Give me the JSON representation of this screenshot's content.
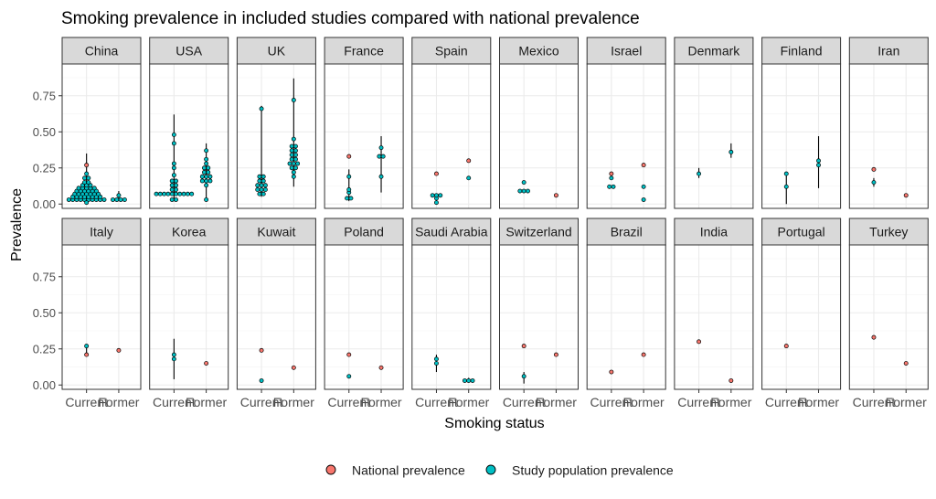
{
  "chart_data": {
    "type": "scatter",
    "title": "Smoking prevalence in included studies compared with national prevalence",
    "xlabel": "Smoking status",
    "ylabel": "Prevalence",
    "categories": [
      "Current",
      "Former"
    ],
    "ylim": [
      -0.03,
      0.97
    ],
    "yticks": [
      0.0,
      0.25,
      0.5,
      0.75
    ],
    "ytick_labels": [
      "0.00",
      "0.25",
      "0.50",
      "0.75"
    ],
    "grid": true,
    "legend_position": "bottom",
    "series_colors": {
      "national": "#F8766D",
      "study": "#00BFC4"
    },
    "legend": [
      {
        "key": "national",
        "label": "National prevalence"
      },
      {
        "key": "study",
        "label": "Study population prevalence"
      }
    ],
    "panels": [
      {
        "name": "China",
        "ranges": {
          "Current": [
            0.01,
            0.35
          ],
          "Former": [
            0.02,
            0.09
          ]
        },
        "national": {
          "Current": [
            0.27
          ],
          "Former": []
        },
        "study": {
          "Current": [
            0.03,
            0.03,
            0.03,
            0.03,
            0.03,
            0.03,
            0.03,
            0.03,
            0.03,
            0.03,
            0.05,
            0.05,
            0.05,
            0.05,
            0.05,
            0.05,
            0.05,
            0.05,
            0.07,
            0.07,
            0.07,
            0.07,
            0.07,
            0.07,
            0.07,
            0.09,
            0.09,
            0.09,
            0.09,
            0.09,
            0.09,
            0.11,
            0.11,
            0.11,
            0.11,
            0.11,
            0.13,
            0.13,
            0.13,
            0.15,
            0.15,
            0.18,
            0.18,
            0.21,
            0.01
          ],
          "Former": [
            0.03,
            0.03,
            0.03,
            0.03,
            0.06
          ]
        }
      },
      {
        "name": "USA",
        "ranges": {
          "Current": [
            0.02,
            0.62
          ],
          "Former": [
            0.02,
            0.42
          ]
        },
        "national": {
          "Current": [],
          "Former": []
        },
        "study": {
          "Current": [
            0.07,
            0.07,
            0.07,
            0.07,
            0.07,
            0.07,
            0.07,
            0.07,
            0.07,
            0.07,
            0.1,
            0.1,
            0.13,
            0.13,
            0.16,
            0.16,
            0.2,
            0.25,
            0.28,
            0.42,
            0.48,
            0.03,
            0.03
          ],
          "Former": [
            0.03,
            0.13,
            0.16,
            0.16,
            0.16,
            0.19,
            0.19,
            0.19,
            0.22,
            0.22,
            0.25,
            0.25,
            0.28,
            0.31,
            0.37
          ]
        }
      },
      {
        "name": "UK",
        "ranges": {
          "Current": [
            0.05,
            0.68
          ],
          "Former": [
            0.12,
            0.87
          ]
        },
        "national": {
          "Current": [],
          "Former": []
        },
        "study": {
          "Current": [
            0.07,
            0.07,
            0.1,
            0.1,
            0.1,
            0.13,
            0.13,
            0.13,
            0.16,
            0.16,
            0.19,
            0.19,
            0.66
          ],
          "Former": [
            0.19,
            0.22,
            0.25,
            0.25,
            0.28,
            0.28,
            0.28,
            0.31,
            0.31,
            0.34,
            0.34,
            0.37,
            0.37,
            0.4,
            0.4,
            0.45,
            0.72
          ]
        }
      },
      {
        "name": "France",
        "ranges": {
          "Current": [
            0.02,
            0.24
          ],
          "Former": [
            0.08,
            0.47
          ]
        },
        "national": {
          "Current": [
            0.33
          ],
          "Former": []
        },
        "study": {
          "Current": [
            0.04,
            0.04,
            0.08,
            0.1,
            0.19
          ],
          "Former": [
            0.19,
            0.33,
            0.33,
            0.39
          ]
        }
      },
      {
        "name": "Spain",
        "ranges": {
          "Current": [
            0.01,
            0.07
          ],
          "Former": []
        },
        "national": {
          "Current": [
            0.21
          ],
          "Former": [
            0.3
          ]
        },
        "study": {
          "Current": [
            0.01,
            0.04,
            0.06,
            0.06,
            0.06
          ],
          "Former": [
            0.18
          ]
        }
      },
      {
        "name": "Mexico",
        "ranges": {
          "Current": [],
          "Former": []
        },
        "national": {
          "Current": [],
          "Former": [
            0.06
          ]
        },
        "study": {
          "Current": [
            0.09,
            0.09,
            0.09,
            0.15
          ],
          "Former": []
        }
      },
      {
        "name": "Israel",
        "ranges": {
          "Current": [],
          "Former": []
        },
        "national": {
          "Current": [
            0.21
          ],
          "Former": [
            0.27
          ]
        },
        "study": {
          "Current": [
            0.12,
            0.12,
            0.18
          ],
          "Former": [
            0.03,
            0.12
          ]
        }
      },
      {
        "name": "Denmark",
        "ranges": {
          "Current": [
            0.18,
            0.25
          ],
          "Former": [
            0.32,
            0.42
          ]
        },
        "national": {
          "Current": [],
          "Former": []
        },
        "study": {
          "Current": [
            0.21
          ],
          "Former": [
            0.36
          ]
        }
      },
      {
        "name": "Finland",
        "ranges": {
          "Current": [
            0.0,
            0.22
          ],
          "Former": [
            0.11,
            0.47
          ]
        },
        "national": {
          "Current": [],
          "Former": []
        },
        "study": {
          "Current": [
            0.12,
            0.21
          ],
          "Former": [
            0.27,
            0.3
          ]
        }
      },
      {
        "name": "Iran",
        "ranges": {
          "Current": [
            0.12,
            0.18
          ],
          "Former": []
        },
        "national": {
          "Current": [
            0.24
          ],
          "Former": [
            0.06
          ]
        },
        "study": {
          "Current": [
            0.15
          ],
          "Former": []
        }
      },
      {
        "name": "Italy",
        "ranges": {
          "Current": [
            0.22,
            0.28
          ],
          "Former": []
        },
        "national": {
          "Current": [
            0.21
          ],
          "Former": [
            0.24
          ]
        },
        "study": {
          "Current": [
            0.27
          ],
          "Former": []
        }
      },
      {
        "name": "Korea",
        "ranges": {
          "Current": [
            0.04,
            0.32
          ],
          "Former": []
        },
        "national": {
          "Current": [],
          "Former": [
            0.15
          ]
        },
        "study": {
          "Current": [
            0.18,
            0.21
          ],
          "Former": []
        }
      },
      {
        "name": "Kuwait",
        "ranges": {
          "Current": [],
          "Former": []
        },
        "national": {
          "Current": [
            0.24
          ],
          "Former": [
            0.12
          ]
        },
        "study": {
          "Current": [
            0.03
          ],
          "Former": []
        }
      },
      {
        "name": "Poland",
        "ranges": {
          "Current": [],
          "Former": []
        },
        "national": {
          "Current": [
            0.21
          ],
          "Former": [
            0.12
          ]
        },
        "study": {
          "Current": [
            0.06
          ],
          "Former": []
        }
      },
      {
        "name": "Saudi Arabia",
        "ranges": {
          "Current": [
            0.09,
            0.21
          ],
          "Former": [
            0.02,
            0.05
          ]
        },
        "national": {
          "Current": [],
          "Former": []
        },
        "study": {
          "Current": [
            0.15,
            0.18
          ],
          "Former": [
            0.03,
            0.03,
            0.03
          ]
        }
      },
      {
        "name": "Switzerland",
        "ranges": {
          "Current": [
            0.01,
            0.09
          ],
          "Former": []
        },
        "national": {
          "Current": [
            0.27
          ],
          "Former": [
            0.21
          ]
        },
        "study": {
          "Current": [
            0.06
          ],
          "Former": []
        }
      },
      {
        "name": "Brazil",
        "ranges": {
          "Current": [],
          "Former": []
        },
        "national": {
          "Current": [
            0.09
          ],
          "Former": [
            0.21
          ]
        },
        "study": {
          "Current": [],
          "Former": []
        }
      },
      {
        "name": "India",
        "ranges": {
          "Current": [],
          "Former": []
        },
        "national": {
          "Current": [
            0.3
          ],
          "Former": [
            0.03
          ]
        },
        "study": {
          "Current": [],
          "Former": []
        }
      },
      {
        "name": "Portugal",
        "ranges": {
          "Current": [],
          "Former": []
        },
        "national": {
          "Current": [
            0.27
          ],
          "Former": []
        },
        "study": {
          "Current": [],
          "Former": []
        }
      },
      {
        "name": "Turkey",
        "ranges": {
          "Current": [],
          "Former": []
        },
        "national": {
          "Current": [
            0.33
          ],
          "Former": [
            0.15
          ]
        },
        "study": {
          "Current": [],
          "Former": []
        }
      }
    ]
  }
}
